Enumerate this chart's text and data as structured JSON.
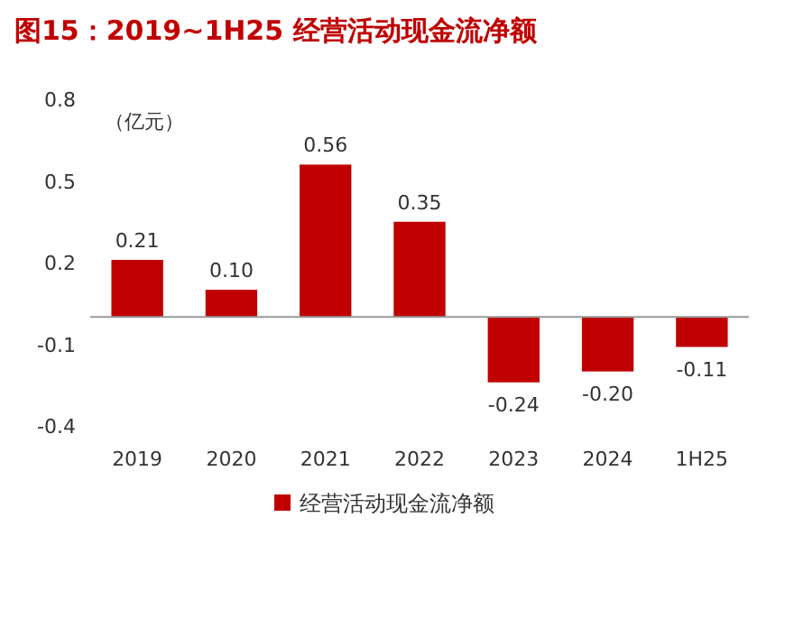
{
  "chart_data": {
    "type": "bar",
    "title": "图15：2019~1H25 经营活动现金流净额",
    "ylabel": "（亿元）",
    "categories": [
      "2019",
      "2020",
      "2021",
      "2022",
      "2023",
      "2024",
      "1H25"
    ],
    "series": [
      {
        "name": "经营活动现金流净额",
        "color": "#c00000",
        "values": [
          0.21,
          0.1,
          0.56,
          0.35,
          -0.24,
          -0.2,
          -0.11
        ],
        "value_labels": [
          "0.21",
          "0.10",
          "0.56",
          "0.35",
          "-0.24",
          "-0.20",
          "-0.11"
        ]
      }
    ],
    "ylim": [
      -0.4,
      0.8
    ],
    "yticks": [
      -0.4,
      -0.1,
      0.2,
      0.5,
      0.8
    ],
    "legend": "bottom"
  }
}
